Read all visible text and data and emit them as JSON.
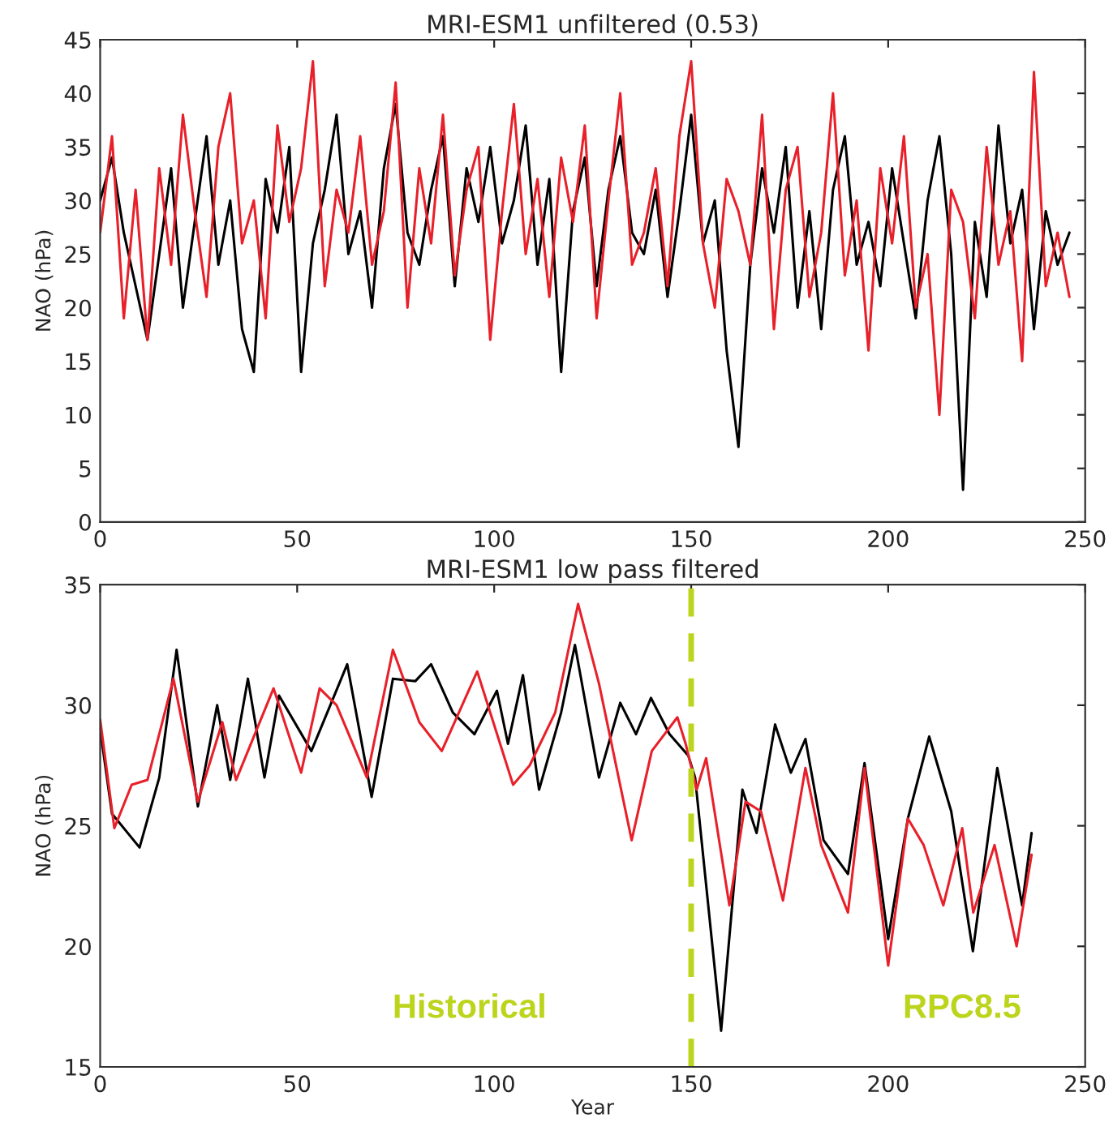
{
  "chart_data": [
    {
      "type": "line",
      "title": "MRI-ESM1 unfiltered (0.53)",
      "ylabel": "NAO (hPa)",
      "x": [
        0,
        3,
        6,
        9,
        12,
        15,
        18,
        21,
        24,
        27,
        30,
        33,
        36,
        39,
        42,
        45,
        48,
        51,
        54,
        57,
        60,
        63,
        66,
        69,
        72,
        75,
        78,
        81,
        84,
        87,
        90,
        93,
        96,
        99,
        102,
        105,
        108,
        111,
        114,
        117,
        120,
        123,
        126,
        129,
        132,
        135,
        138,
        141,
        144,
        147,
        150,
        153,
        156,
        159,
        162,
        165,
        168,
        171,
        174,
        177,
        180,
        183,
        186,
        189,
        192,
        195,
        198,
        201,
        204,
        207,
        210,
        213,
        216,
        219,
        222,
        225,
        228,
        231,
        234,
        237,
        240,
        243,
        246
      ],
      "series": [
        {
          "color": "#000000",
          "values": [
            30,
            34,
            27,
            22,
            17,
            25,
            33,
            20,
            28,
            36,
            24,
            30,
            18,
            14,
            32,
            27,
            35,
            14,
            26,
            31,
            38,
            25,
            29,
            20,
            33,
            39,
            27,
            24,
            31,
            36,
            22,
            33,
            28,
            35,
            26,
            30,
            37,
            24,
            32,
            14,
            29,
            34,
            22,
            31,
            36,
            27,
            25,
            31,
            21,
            29,
            38,
            26,
            30,
            16,
            7,
            24,
            33,
            27,
            35,
            20,
            29,
            18,
            31,
            36,
            24,
            28,
            22,
            33,
            26,
            19,
            30,
            36,
            25,
            3,
            28,
            21,
            37,
            26,
            31,
            18,
            29,
            24,
            27
          ]
        },
        {
          "color": "#e8202a",
          "values": [
            27,
            36,
            19,
            31,
            17,
            33,
            24,
            38,
            29,
            21,
            35,
            40,
            26,
            30,
            19,
            37,
            28,
            33,
            43,
            22,
            31,
            27,
            36,
            24,
            29,
            41,
            20,
            33,
            26,
            38,
            23,
            31,
            35,
            17,
            29,
            39,
            25,
            32,
            21,
            34,
            28,
            37,
            19,
            30,
            40,
            24,
            27,
            33,
            22,
            36,
            43,
            26,
            20,
            32,
            29,
            24,
            38,
            18,
            31,
            35,
            21,
            27,
            40,
            23,
            30,
            16,
            33,
            26,
            36,
            20,
            25,
            10,
            31,
            28,
            19,
            35,
            24,
            29,
            15,
            42,
            22,
            27,
            21
          ]
        }
      ],
      "xlim": [
        0,
        250
      ],
      "xticks": [
        0,
        50,
        100,
        150,
        200,
        250
      ],
      "ylim": [
        0,
        45
      ],
      "yticks": [
        0,
        5,
        10,
        15,
        20,
        25,
        30,
        35,
        40,
        45
      ],
      "grid": false,
      "legend": false
    },
    {
      "type": "line",
      "title": "MRI-ESM1 low pass filtered",
      "xlabel": "Year",
      "ylabel": "NAO (hPa)",
      "series": [
        {
          "color": "#000000",
          "x": [
            0,
            3,
            10,
            15,
            19.4,
            24.8,
            29.7,
            33,
            37.5,
            41.7,
            45.4,
            53.6,
            62.7,
            68.9,
            74.3,
            80,
            84,
            89.5,
            95,
            100.7,
            103.5,
            107.3,
            111.4,
            117,
            120.5,
            126.6,
            132,
            136,
            139.8,
            144.5,
            149.3,
            151,
            157.6,
            163,
            166.6,
            171.3,
            175.3,
            179,
            183.6,
            189.8,
            194,
            200,
            205,
            210.4,
            216,
            221.5,
            227.7,
            234,
            236.4
          ],
          "values": [
            29,
            25.5,
            24.1,
            27,
            32.3,
            25.8,
            30,
            26.9,
            31.1,
            27,
            30.4,
            28.1,
            31.7,
            26.2,
            31.1,
            31,
            31.7,
            29.7,
            28.8,
            30.6,
            28.4,
            31.25,
            26.5,
            29.7,
            32.5,
            27,
            30.1,
            28.8,
            30.3,
            28.8,
            27.9,
            27,
            16.5,
            26.5,
            24.7,
            29.2,
            27.2,
            28.6,
            24.4,
            23,
            27.6,
            20.3,
            25.3,
            28.7,
            25.6,
            19.8,
            27.4,
            21.7,
            24.7
          ]
        },
        {
          "color": "#e8202a",
          "x": [
            0,
            3.6,
            8,
            12,
            18.6,
            24.8,
            31,
            34.5,
            44,
            51,
            55.7,
            60,
            67.7,
            74.3,
            81,
            86.7,
            95.7,
            104.8,
            109,
            115.5,
            121.3,
            126.6,
            134.9,
            140,
            146.5,
            148.6,
            151.4,
            153.8,
            159.7,
            163.8,
            167.7,
            173.3,
            179,
            183,
            189.8,
            194,
            200,
            205,
            209,
            214,
            218.8,
            221.6,
            227,
            232.6,
            236.4
          ],
          "values": [
            29.4,
            24.9,
            26.7,
            26.9,
            31.1,
            26,
            29.3,
            26.9,
            30.7,
            27.2,
            30.7,
            30,
            27,
            32.3,
            29.3,
            28.1,
            31.4,
            26.7,
            27.5,
            29.7,
            34.2,
            30.9,
            24.4,
            28.1,
            29.5,
            28.4,
            26.5,
            27.8,
            21.7,
            26,
            25.6,
            21.9,
            27.4,
            24.2,
            21.4,
            27.4,
            19.2,
            25.3,
            24.2,
            21.7,
            24.9,
            21.4,
            24.2,
            20,
            23.8
          ]
        }
      ],
      "xlim": [
        0,
        250
      ],
      "xticks": [
        0,
        50,
        100,
        150,
        200,
        250
      ],
      "ylim": [
        15,
        35
      ],
      "yticks": [
        15,
        20,
        25,
        30,
        35
      ],
      "grid": false,
      "legend": false,
      "ref_lines": [
        {
          "axis": "x",
          "value": 150,
          "color": "#bcd41c",
          "line_style": "dashed"
        }
      ],
      "annotations": [
        "Historical",
        "RPC8.5"
      ]
    }
  ]
}
